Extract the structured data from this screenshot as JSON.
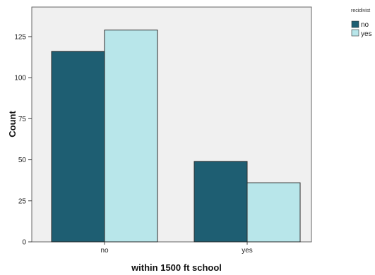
{
  "chart_data": {
    "type": "bar",
    "xlabel": "within 1500 ft school",
    "ylabel": "Count",
    "categories": [
      "no",
      "yes"
    ],
    "series": [
      {
        "name": "no",
        "values": [
          116,
          49
        ]
      },
      {
        "name": "yes",
        "values": [
          129,
          36
        ]
      }
    ],
    "ylim": [
      0,
      143
    ],
    "yticks": [
      "0",
      "25",
      "50",
      "75",
      "100",
      "125"
    ],
    "legend": {
      "title": "recidivist",
      "position": "top-right"
    },
    "colors": {
      "no": "#1e5e72",
      "yes": "#b8e6ea",
      "plot_background": "#f0f0f0"
    },
    "grid": false
  }
}
